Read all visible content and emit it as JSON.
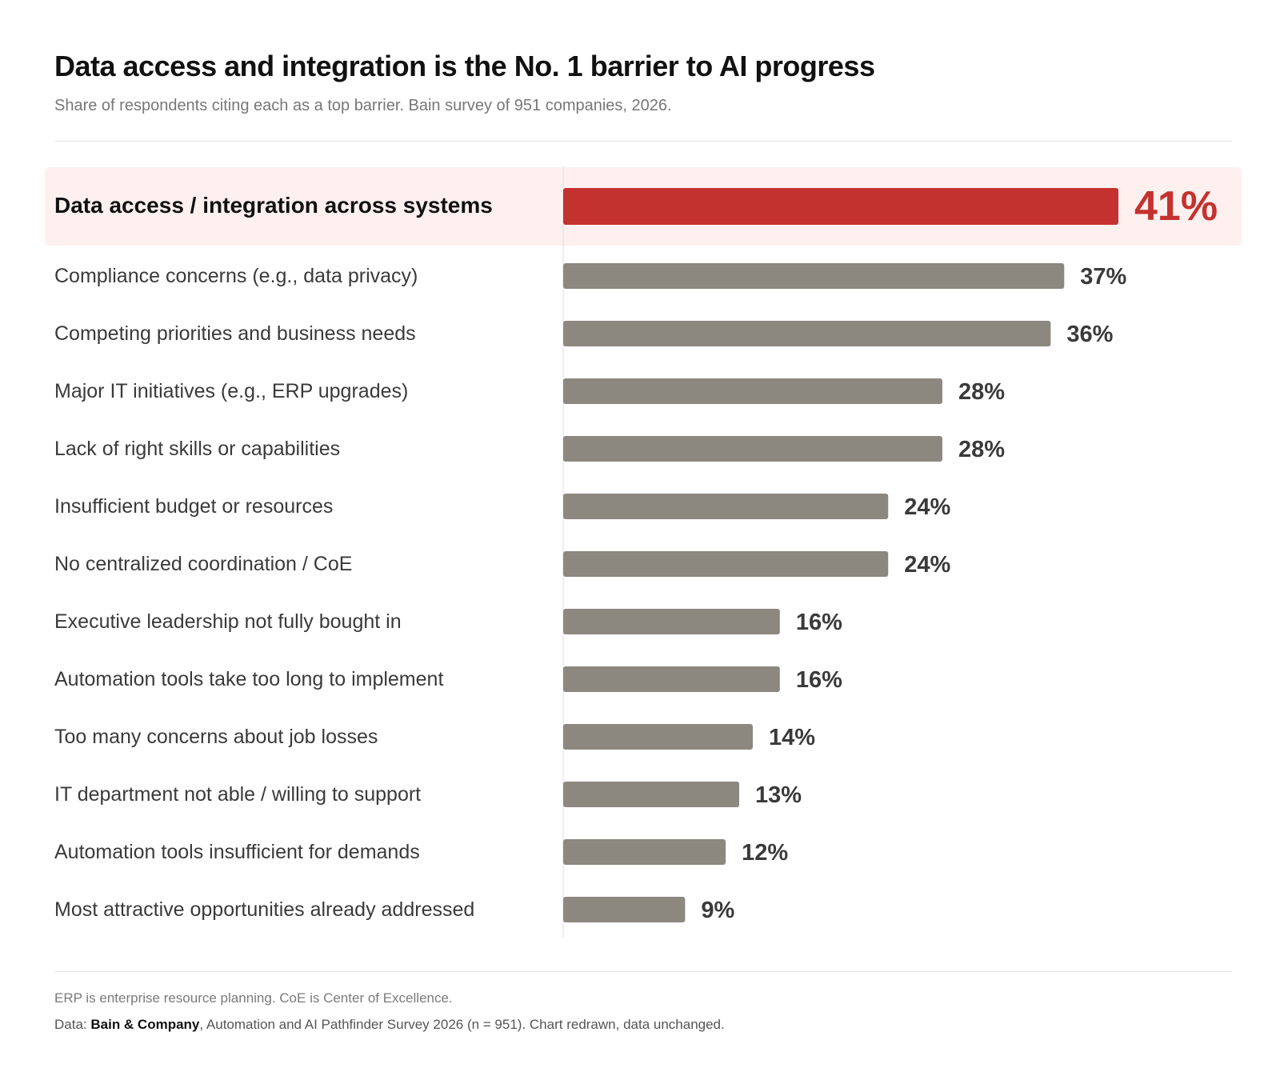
{
  "header": {
    "title": "Data access and integration is the No. 1 barrier to AI progress",
    "subtitle": "Share of respondents citing each as a top barrier. Bain survey of 951 companies, 2026."
  },
  "footer": {
    "footnote": "ERP is enterprise resource planning. CoE is Center of Excellence.",
    "source_prefix": "Data: ",
    "source_org": "Bain & Company",
    "source_rest": ", Automation and AI Pathfinder Survey 2026 (n = 951). Chart redrawn, data unchanged."
  },
  "colors": {
    "highlight_bar": "#c4322f",
    "highlight_bg": "#fdf0ef",
    "bar": "#8c8880",
    "label": "#3a3a3a",
    "value": "#3a3a3a"
  },
  "chart_data": {
    "type": "bar",
    "orientation": "horizontal",
    "categories": [
      "Data access / integration across systems",
      "Compliance concerns (e.g., data privacy)",
      "Competing priorities and business needs",
      "Major IT initiatives (e.g., ERP upgrades)",
      "Lack of right skills or capabilities",
      "Insufficient budget or resources",
      "No centralized coordination / CoE",
      "Executive leadership not fully bought in",
      "Automation tools take too long to implement",
      "Too many concerns about job losses",
      "IT department not able / willing to support",
      "Automation tools insufficient for demands",
      "Most attractive opportunities already addressed"
    ],
    "values": [
      41,
      37,
      36,
      28,
      28,
      24,
      24,
      16,
      16,
      14,
      13,
      12,
      9
    ],
    "value_labels": [
      "41%",
      "37%",
      "36%",
      "28%",
      "28%",
      "24%",
      "24%",
      "16%",
      "16%",
      "14%",
      "13%",
      "12%",
      "9%"
    ],
    "highlight_index": 0,
    "xlim": [
      0,
      41
    ],
    "grid": false,
    "legend": "none"
  }
}
